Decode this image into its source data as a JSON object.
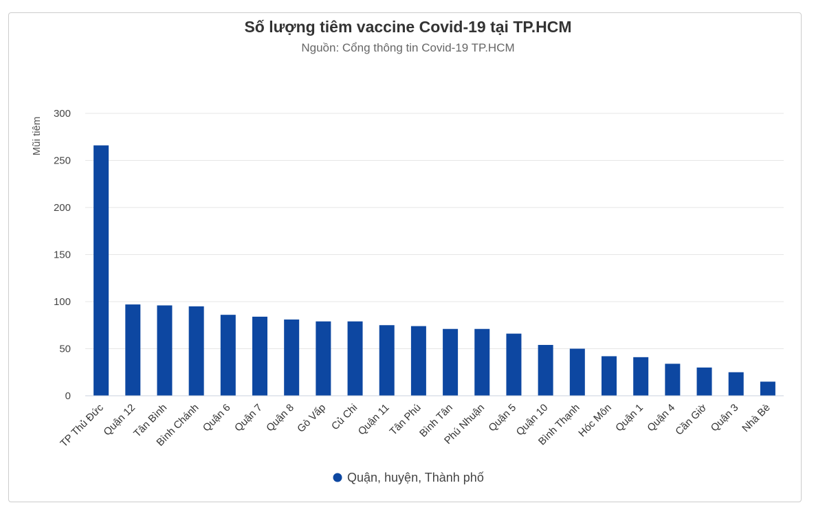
{
  "chart_data": {
    "type": "bar",
    "title": "Số lượng tiêm vaccine Covid-19 tại TP.HCM",
    "subtitle": "Nguồn: Cổng thông tin Covid-19 TP.HCM",
    "xlabel": "",
    "ylabel": "Mũi tiêm",
    "ylim": [
      0,
      300
    ],
    "yticks": [
      0,
      50,
      100,
      150,
      200,
      250,
      300
    ],
    "grid": true,
    "legend_position": "bottom-center",
    "categories": [
      "TP Thủ Đức",
      "Quận 12",
      "Tân Bình",
      "Bình Chánh",
      "Quận 6",
      "Quận 7",
      "Quận 8",
      "Gò Vấp",
      "Củ Chi",
      "Quận 11",
      "Tân Phú",
      "Bình Tân",
      "Phú Nhuận",
      "Quận 5",
      "Quận 10",
      "Bình Thạnh",
      "Hóc Môn",
      "Quận 1",
      "Quận 4",
      "Cần Giờ",
      "Quận 3",
      "Nhà Bè"
    ],
    "series": [
      {
        "name": "Quận, huyện, Thành phố",
        "color": "#0d47a1",
        "values": [
          266,
          97,
          96,
          95,
          86,
          84,
          81,
          79,
          79,
          75,
          74,
          71,
          71,
          66,
          54,
          50,
          42,
          41,
          34,
          30,
          25,
          15
        ]
      }
    ]
  }
}
